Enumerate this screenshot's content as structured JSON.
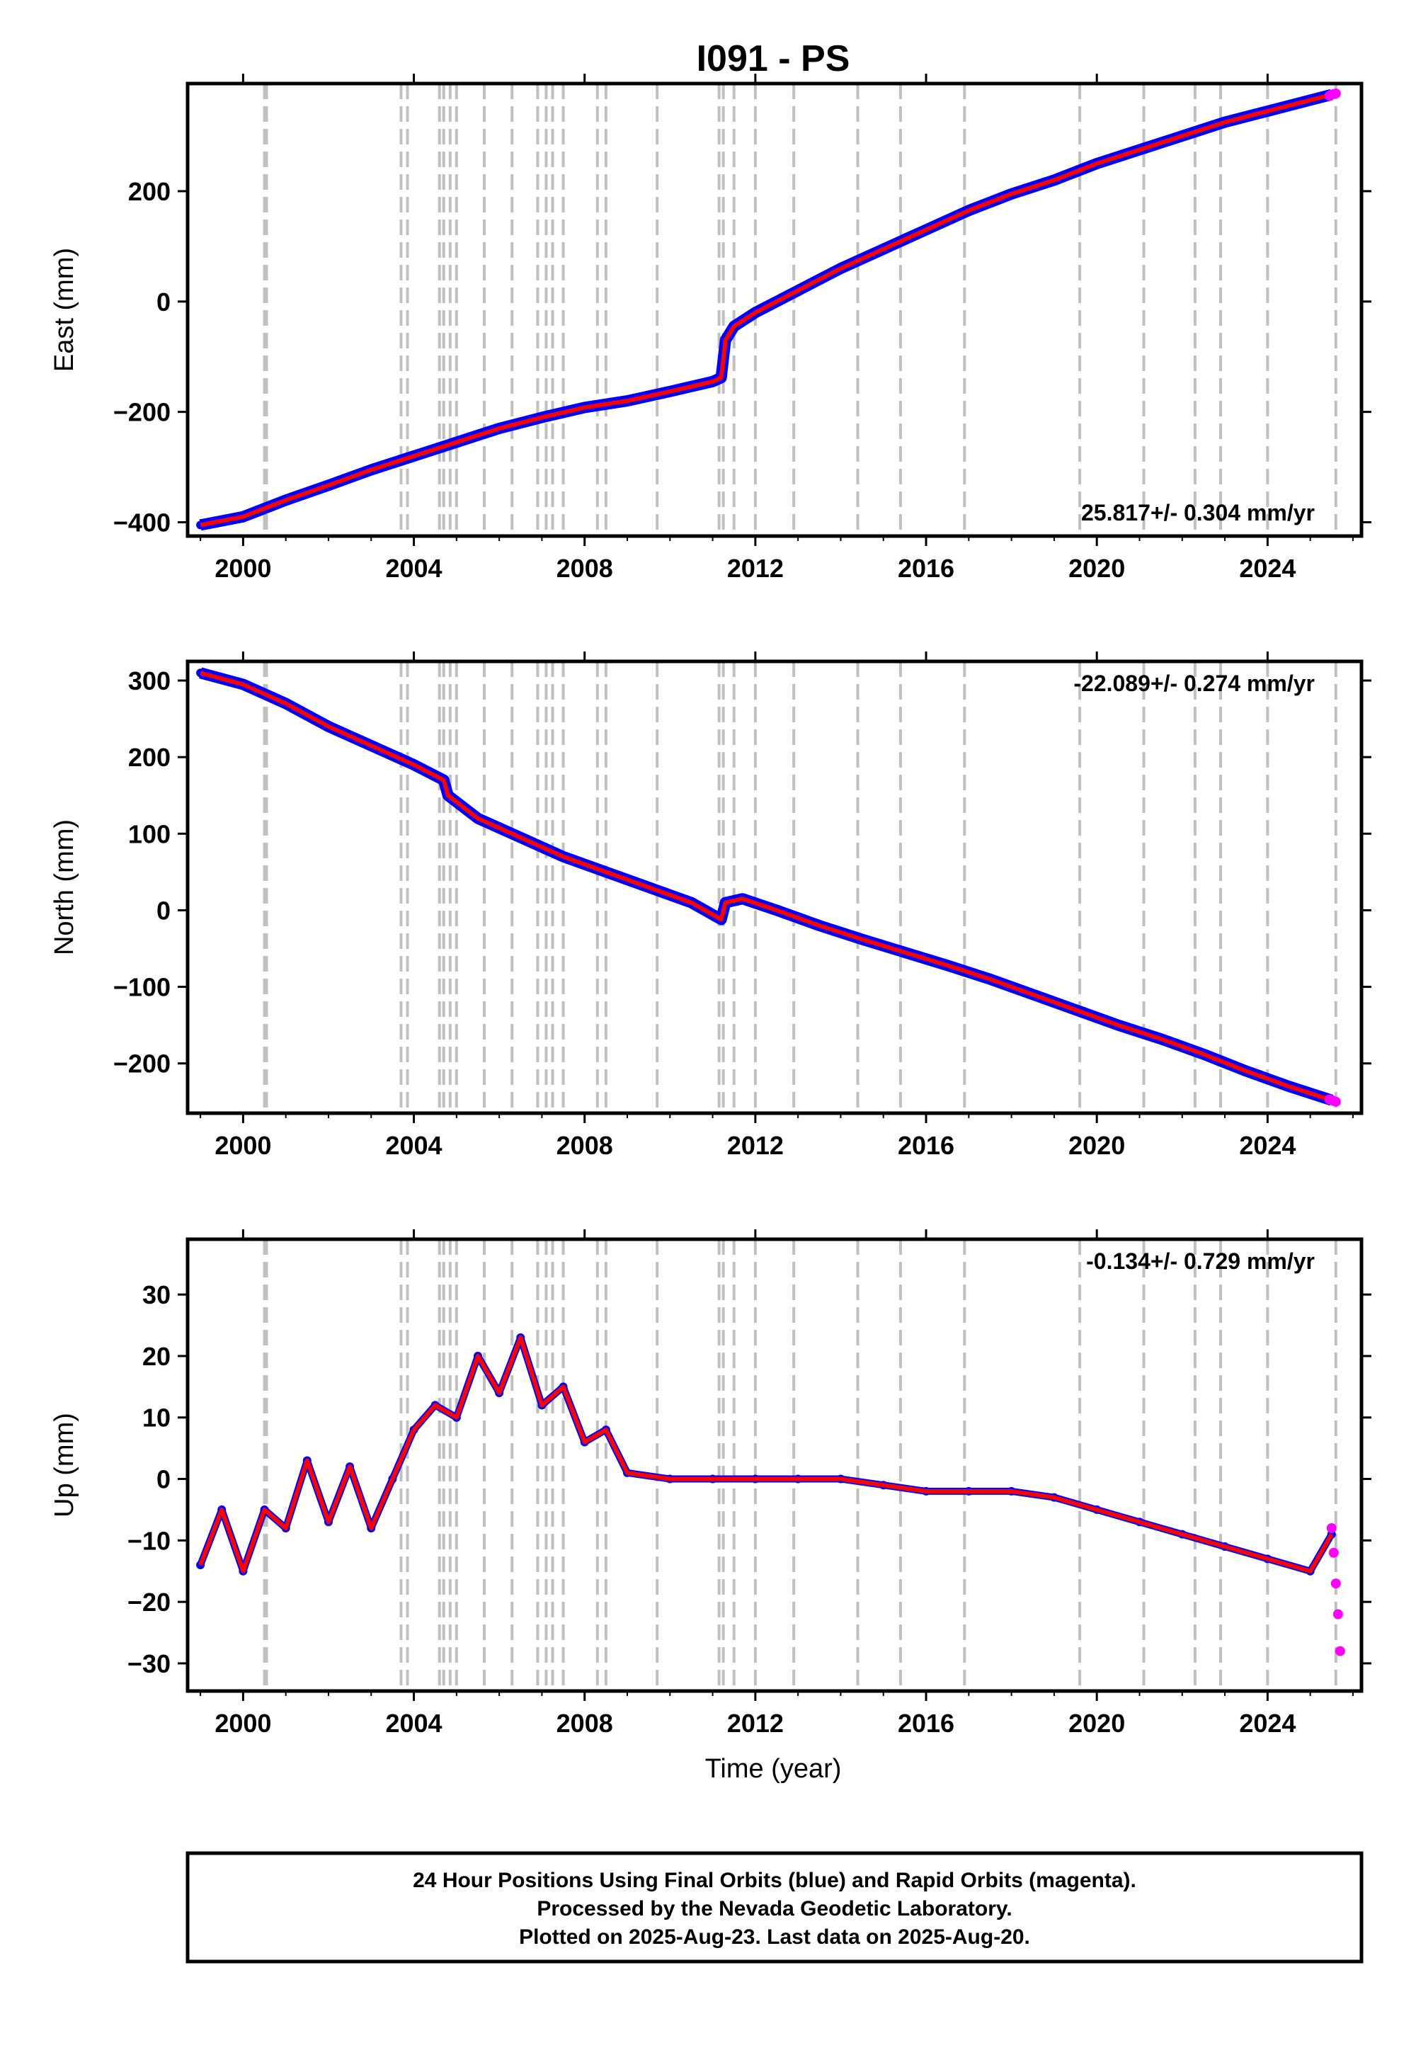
{
  "page_title": "I091 - PS",
  "footer": {
    "line1": "24 Hour Positions Using Final Orbits (blue) and Rapid Orbits (magenta).",
    "line2": "Processed by the Nevada Geodetic Laboratory.",
    "line3": "Plotted on 2025-Aug-23. Last data on 2025-Aug-20."
  },
  "colors": {
    "final_orbits": "#0000ff",
    "rapid_orbits": "#ff00ff",
    "model": "#ff0000",
    "event_lines": "#c0c0c0"
  },
  "chart_data": [
    {
      "type": "scatter",
      "title": "I091 - PS",
      "xlabel": "",
      "ylabel": "East (mm)",
      "xlim": [
        1998.7,
        2026.2
      ],
      "ylim": [
        -425,
        395
      ],
      "xticks": [
        2000,
        2004,
        2008,
        2012,
        2016,
        2020,
        2024
      ],
      "yticks": [
        -400,
        -200,
        0,
        200
      ],
      "rate_label": "25.817+/- 0.304 mm/yr",
      "rate_position": "bottom-right",
      "series": [
        {
          "color": "blue",
          "x": [
            1999.0,
            2000.0,
            2001.0,
            2002.0,
            2003.0,
            2004.0,
            2005.0,
            2006.0,
            2007.0,
            2008.0,
            2009.0,
            2010.0,
            2011.0,
            2011.2,
            2011.3,
            2011.5,
            2012.0,
            2013.0,
            2014.0,
            2015.0,
            2016.0,
            2017.0,
            2018.0,
            2019.0,
            2020.0,
            2021.0,
            2022.0,
            2023.0,
            2024.0,
            2025.0,
            2025.5
          ],
          "y": [
            -405,
            -390,
            -360,
            -333,
            -305,
            -280,
            -255,
            -230,
            -210,
            -192,
            -180,
            -163,
            -145,
            -138,
            -70,
            -45,
            -20,
            20,
            60,
            95,
            130,
            165,
            195,
            220,
            250,
            275,
            300,
            325,
            345,
            365,
            375
          ]
        },
        {
          "color": "magenta",
          "x": [
            2025.45,
            2025.5,
            2025.55,
            2025.6
          ],
          "y": [
            373,
            375,
            376,
            377
          ]
        }
      ],
      "events": [
        2000.5,
        2000.55,
        2003.7,
        2003.85,
        2004.6,
        2004.7,
        2004.85,
        2005.0,
        2005.65,
        2006.3,
        2006.9,
        2007.1,
        2007.25,
        2007.5,
        2008.3,
        2008.5,
        2009.7,
        2011.15,
        2011.25,
        2011.5,
        2012.0,
        2012.9,
        2014.4,
        2015.4,
        2016.9,
        2019.6,
        2021.1,
        2022.3,
        2022.9,
        2024.0,
        2025.6
      ]
    },
    {
      "type": "scatter",
      "xlabel": "",
      "ylabel": "North (mm)",
      "xlim": [
        1998.7,
        2026.2
      ],
      "ylim": [
        -265,
        325
      ],
      "xticks": [
        2000,
        2004,
        2008,
        2012,
        2016,
        2020,
        2024
      ],
      "yticks": [
        -200,
        -100,
        0,
        100,
        200,
        300
      ],
      "rate_label": "-22.089+/- 0.274 mm/yr",
      "rate_position": "top-right",
      "series": [
        {
          "color": "blue",
          "x": [
            1999.0,
            2000.0,
            2001.0,
            2002.0,
            2003.0,
            2004.0,
            2004.7,
            2004.8,
            2005.5,
            2006.5,
            2007.5,
            2008.5,
            2009.5,
            2010.5,
            2011.2,
            2011.3,
            2011.7,
            2012.5,
            2013.5,
            2014.5,
            2015.5,
            2016.5,
            2017.5,
            2018.5,
            2019.5,
            2020.5,
            2021.5,
            2022.5,
            2023.5,
            2024.5,
            2025.5
          ],
          "y": [
            310,
            295,
            270,
            240,
            215,
            190,
            170,
            150,
            120,
            95,
            70,
            50,
            30,
            10,
            -12,
            10,
            15,
            0,
            -20,
            -38,
            -55,
            -72,
            -90,
            -110,
            -130,
            -150,
            -168,
            -188,
            -210,
            -230,
            -248
          ]
        },
        {
          "color": "magenta",
          "x": [
            2025.45,
            2025.5,
            2025.55,
            2025.6
          ],
          "y": [
            -247,
            -248,
            -249,
            -250
          ]
        }
      ],
      "events": [
        2000.5,
        2000.55,
        2003.7,
        2003.85,
        2004.6,
        2004.7,
        2004.85,
        2005.0,
        2005.65,
        2006.3,
        2006.9,
        2007.1,
        2007.25,
        2007.5,
        2008.3,
        2008.5,
        2009.7,
        2011.15,
        2011.25,
        2011.5,
        2012.0,
        2012.9,
        2014.4,
        2015.4,
        2016.9,
        2019.6,
        2021.1,
        2022.3,
        2022.9,
        2024.0,
        2025.6
      ]
    },
    {
      "type": "scatter",
      "xlabel": "Time (year)",
      "ylabel": "Up (mm)",
      "xlim": [
        1998.7,
        2026.2
      ],
      "ylim": [
        -34.5,
        39
      ],
      "xticks": [
        2000,
        2004,
        2008,
        2012,
        2016,
        2020,
        2024
      ],
      "yticks": [
        -30,
        -20,
        -10,
        0,
        10,
        20,
        30
      ],
      "rate_label": "-0.134+/- 0.729 mm/yr",
      "rate_position": "top-right",
      "series": [
        {
          "color": "blue",
          "x": [
            1999.0,
            1999.5,
            2000.0,
            2000.5,
            2001.0,
            2001.5,
            2002.0,
            2002.5,
            2003.0,
            2003.5,
            2004.0,
            2004.5,
            2005.0,
            2005.5,
            2006.0,
            2006.5,
            2007.0,
            2007.5,
            2008.0,
            2008.5,
            2009.0,
            2010.0,
            2011.0,
            2012.0,
            2013.0,
            2014.0,
            2015.0,
            2016.0,
            2017.0,
            2018.0,
            2019.0,
            2020.0,
            2021.0,
            2022.0,
            2023.0,
            2024.0,
            2025.0,
            2025.5
          ],
          "y": [
            -14,
            -5,
            -15,
            -5,
            -8,
            3,
            -7,
            2,
            -8,
            0,
            8,
            12,
            10,
            20,
            14,
            23,
            12,
            15,
            6,
            8,
            1,
            0,
            0,
            0,
            0,
            0,
            -1,
            -2,
            -2,
            -2,
            -3,
            -5,
            -7,
            -9,
            -11,
            -13,
            -15,
            -9
          ]
        },
        {
          "color": "magenta",
          "x": [
            2025.5,
            2025.55,
            2025.6,
            2025.65,
            2025.7
          ],
          "y": [
            -8,
            -12,
            -17,
            -22,
            -28
          ]
        }
      ],
      "events": [
        2000.5,
        2000.55,
        2003.7,
        2003.85,
        2004.6,
        2004.7,
        2004.85,
        2005.0,
        2005.65,
        2006.3,
        2006.9,
        2007.1,
        2007.25,
        2007.5,
        2008.3,
        2008.5,
        2009.7,
        2011.15,
        2011.25,
        2011.5,
        2012.0,
        2012.9,
        2014.4,
        2015.4,
        2016.9,
        2019.6,
        2021.1,
        2022.3,
        2022.9,
        2024.0,
        2025.6
      ]
    }
  ]
}
